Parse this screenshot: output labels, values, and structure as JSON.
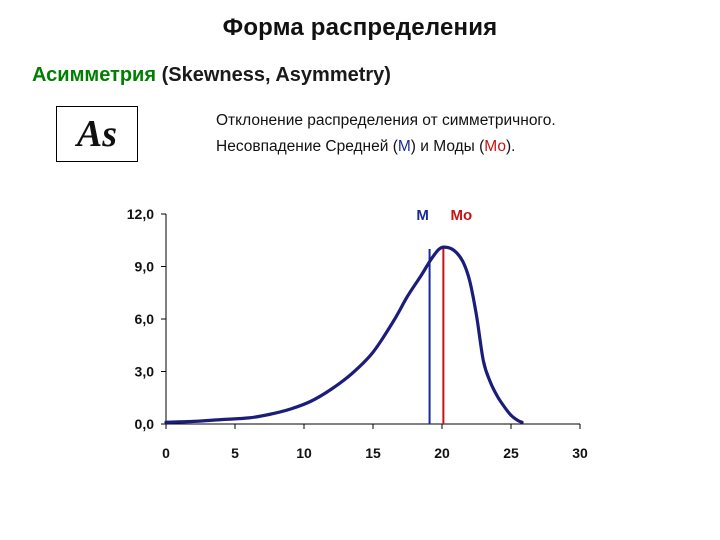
{
  "header": {
    "title": "Форма распределения",
    "subtitle_ru": "Асимметрия",
    "subtitle_en": "(Skewness, Asymmetry)",
    "symbol": "As",
    "desc_line1": "Отклонение распределения от симметричного.",
    "desc_line2_a": "Несовпадение Средней (",
    "desc_line2_m": "М",
    "desc_line2_b": ") и Моды (",
    "desc_line2_mo": "Мо",
    "desc_line2_c": ")."
  },
  "colors": {
    "curve": "#1c1c7a",
    "mean": "#1a2a9c",
    "mode": "#cc1111",
    "axis": "#000000"
  },
  "chart_data": {
    "type": "line",
    "title": "",
    "xlabel": "",
    "ylabel": "",
    "xlim": [
      0,
      30
    ],
    "ylim": [
      0,
      12
    ],
    "x_ticks": [
      0,
      5,
      10,
      15,
      20,
      25,
      30
    ],
    "x_tick_labels": [
      "0",
      "5",
      "10",
      "15",
      "20",
      "25",
      "30"
    ],
    "y_ticks": [
      0,
      3,
      6,
      9,
      12
    ],
    "y_tick_labels": [
      "0,0",
      "3,0",
      "6,0",
      "9,0",
      "12,0"
    ],
    "grid": false,
    "series": [
      {
        "x": [
          0,
          2,
          4,
          6,
          7.5,
          9,
          10.5,
          12,
          13.5,
          15,
          16.5,
          17.5,
          18.5,
          19.2,
          19.8,
          20.3,
          20.9,
          21.5,
          22,
          22.5,
          23,
          23.5,
          24,
          24.5,
          25,
          25.5,
          25.8
        ],
        "y": [
          0.1,
          0.15,
          0.25,
          0.35,
          0.55,
          0.85,
          1.3,
          2.0,
          2.9,
          4.1,
          5.9,
          7.3,
          8.5,
          9.4,
          10.0,
          10.1,
          9.9,
          9.3,
          8.2,
          6.2,
          3.6,
          2.4,
          1.6,
          1.0,
          0.5,
          0.2,
          0.1
        ]
      }
    ],
    "markers": [
      {
        "label": "М",
        "x": 19.1,
        "y": 10.0
      },
      {
        "label": "Мо",
        "x": 20.1,
        "y": 10.1
      }
    ]
  }
}
